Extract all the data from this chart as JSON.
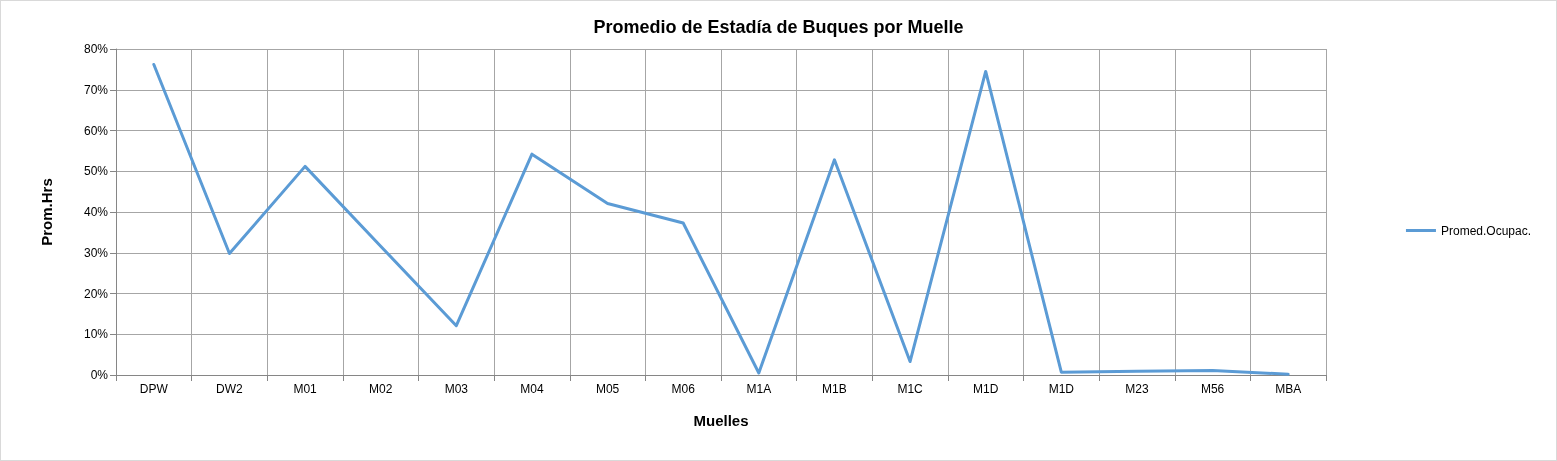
{
  "chart_data": {
    "type": "line",
    "title": "Promedio de Estadía de Buques por Muelle",
    "xlabel": "Muelles",
    "ylabel": "Prom.Hrs",
    "categories": [
      "DPW",
      "DW2",
      "M01",
      "M02",
      "M03",
      "M04",
      "M05",
      "M06",
      "M1A",
      "M1B",
      "M1C",
      "M1D",
      "M1D",
      "M23",
      "M56",
      "MBA"
    ],
    "series": [
      {
        "name": "Promed.Ocupac.",
        "color": "#5b9bd5",
        "values": [
          76.2,
          29.8,
          51.2,
          31.6,
          12.1,
          54.2,
          42.1,
          37.3,
          0.5,
          52.8,
          3.3,
          74.5,
          0.7,
          0.9,
          1.1,
          0.2
        ]
      }
    ],
    "ylim": [
      0,
      80
    ],
    "yticks": [
      {
        "value": 0,
        "label": "0%"
      },
      {
        "value": 10,
        "label": "10%"
      },
      {
        "value": 20,
        "label": "20%"
      },
      {
        "value": 30,
        "label": "30%"
      },
      {
        "value": 40,
        "label": "40%"
      },
      {
        "value": 50,
        "label": "50%"
      },
      {
        "value": 60,
        "label": "60%"
      },
      {
        "value": 70,
        "label": "70%"
      },
      {
        "value": 80,
        "label": "80%"
      }
    ],
    "grid": true,
    "legend": "right",
    "marker": "none",
    "line_style": "solid"
  }
}
